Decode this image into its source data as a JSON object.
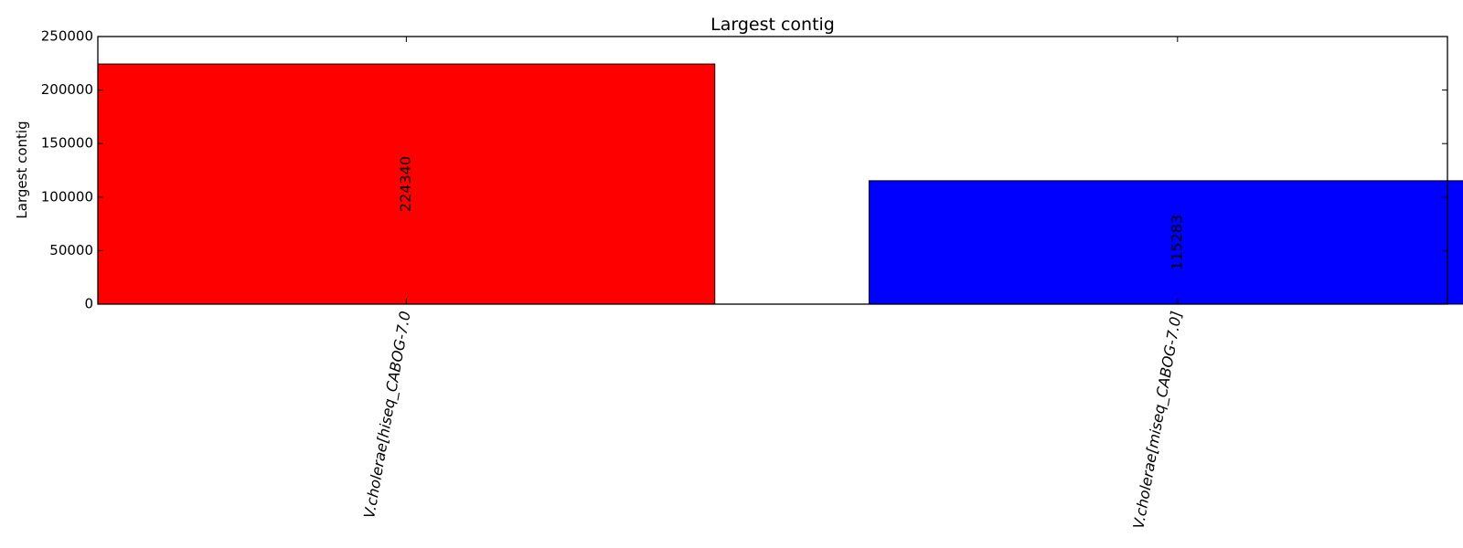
{
  "chart_data": {
    "type": "bar",
    "title": "Largest contig",
    "xlabel": "",
    "ylabel": "Largest contig",
    "ylim": [
      0,
      250000
    ],
    "yticks": [
      0,
      50000,
      100000,
      150000,
      200000,
      250000
    ],
    "categories": [
      "V.cholerae[hiseq_CABOG-7.0",
      "V.cholerae[miseq_CABOG-7.0]"
    ],
    "values": [
      224340,
      115283
    ],
    "value_labels": [
      "224340",
      "115283"
    ],
    "colors": [
      "#ff0000",
      "#0000ff"
    ],
    "grid": false,
    "legend": "none"
  }
}
